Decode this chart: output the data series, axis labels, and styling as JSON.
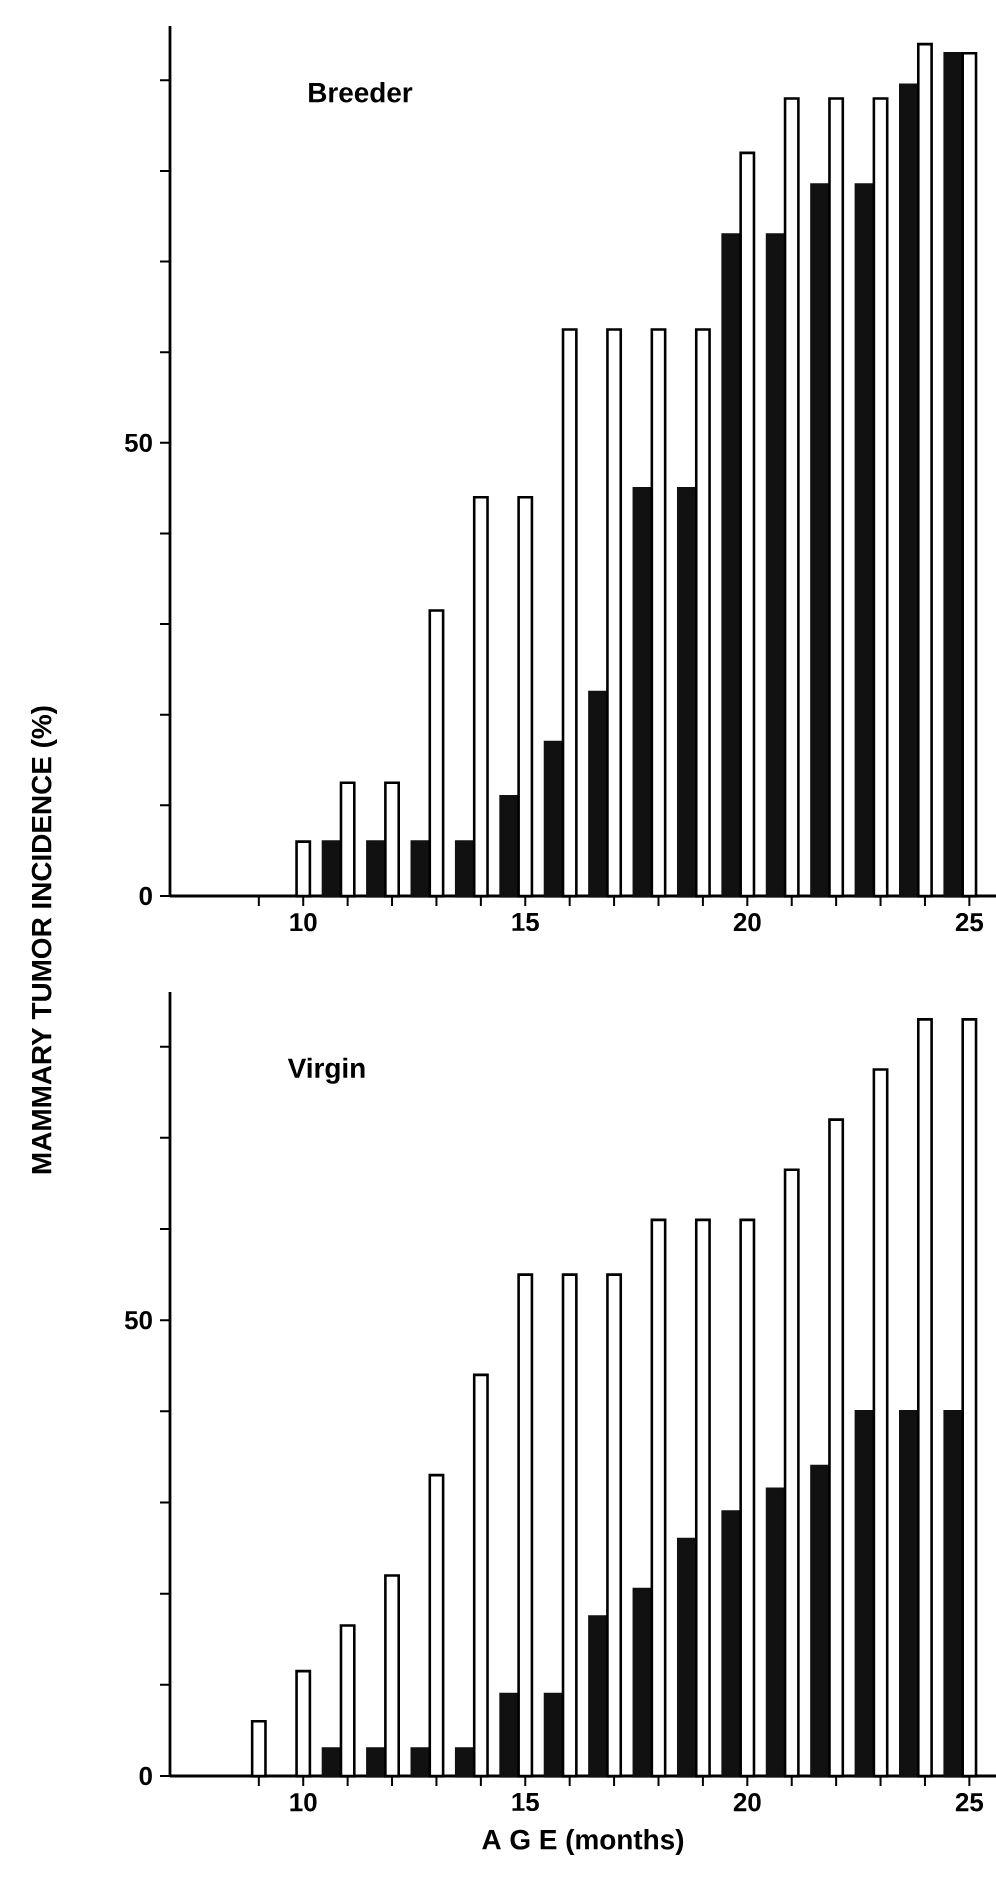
{
  "chart_data": [
    {
      "type": "bar",
      "title": "Breeder",
      "ylabel": "MAMMARY TUMOR INCIDENCE (%)",
      "x": [
        9,
        10,
        11,
        12,
        13,
        14,
        15,
        16,
        17,
        18,
        19,
        20,
        21,
        22,
        23,
        24,
        25
      ],
      "series": [
        {
          "color": "#111111",
          "values": [
            0,
            0,
            6,
            6,
            6,
            6,
            11,
            17,
            22.5,
            45,
            45,
            73,
            73,
            78.5,
            78.5,
            89.5,
            93
          ]
        },
        {
          "color": "#ffffff",
          "values": [
            0,
            6,
            12.5,
            12.5,
            31.5,
            44,
            44,
            62.5,
            62.5,
            62.5,
            62.5,
            82,
            88,
            88,
            88,
            94,
            93
          ]
        }
      ],
      "xlim": [
        7,
        25.6
      ],
      "ylim": [
        0,
        96
      ],
      "xticks": [
        {
          "value": 9,
          "label": null
        },
        10,
        {
          "value": 11,
          "label": null
        },
        {
          "value": 12,
          "label": null
        },
        {
          "value": 13,
          "label": null
        },
        {
          "value": 14,
          "label": null
        },
        15,
        {
          "value": 16,
          "label": null
        },
        {
          "value": 17,
          "label": null
        },
        {
          "value": 18,
          "label": null
        },
        {
          "value": 19,
          "label": null
        },
        20,
        {
          "value": 21,
          "label": null
        },
        {
          "value": 22,
          "label": null
        },
        {
          "value": 23,
          "label": null
        },
        {
          "value": 24,
          "label": null
        },
        25
      ],
      "yticks": [
        0,
        {
          "value": 10,
          "label": null
        },
        {
          "value": 20,
          "label": null
        },
        {
          "value": 30,
          "label": null
        },
        {
          "value": 40,
          "label": null
        },
        50,
        {
          "value": 60,
          "label": null
        },
        {
          "value": 70,
          "label": null
        },
        {
          "value": 80,
          "label": null
        },
        {
          "value": 90,
          "label": null
        }
      ]
    },
    {
      "type": "bar",
      "title": "Virgin",
      "xlabel": "A G E (months)",
      "x": [
        9,
        10,
        11,
        12,
        13,
        14,
        15,
        16,
        17,
        18,
        19,
        20,
        21,
        22,
        23,
        24,
        25
      ],
      "series": [
        {
          "color": "#111111",
          "values": [
            0,
            0,
            3,
            3,
            3,
            3,
            9,
            9,
            17.5,
            20.5,
            26,
            29,
            31.5,
            34,
            40,
            40,
            40
          ]
        },
        {
          "color": "#ffffff",
          "values": [
            6,
            11.5,
            16.5,
            22,
            33,
            44,
            55,
            55,
            55,
            61,
            61,
            61,
            66.5,
            72,
            77.5,
            83,
            83
          ]
        }
      ],
      "xlim": [
        7,
        25.6
      ],
      "ylim": [
        0,
        86
      ],
      "xticks": [
        {
          "value": 9,
          "label": null
        },
        10,
        {
          "value": 11,
          "label": null
        },
        {
          "value": 12,
          "label": null
        },
        {
          "value": 13,
          "label": null
        },
        {
          "value": 14,
          "label": null
        },
        15,
        {
          "value": 16,
          "label": null
        },
        {
          "value": 17,
          "label": null
        },
        {
          "value": 18,
          "label": null
        },
        {
          "value": 19,
          "label": null
        },
        20,
        {
          "value": 21,
          "label": null
        },
        {
          "value": 22,
          "label": null
        },
        {
          "value": 23,
          "label": null
        },
        {
          "value": 24,
          "label": null
        },
        25
      ],
      "yticks": [
        0,
        {
          "value": 10,
          "label": null
        },
        {
          "value": 20,
          "label": null
        },
        {
          "value": 30,
          "label": null
        },
        {
          "value": 40,
          "label": null
        },
        50,
        {
          "value": 60,
          "label": null
        },
        {
          "value": 70,
          "label": null
        },
        {
          "value": 80,
          "label": null
        }
      ]
    }
  ]
}
